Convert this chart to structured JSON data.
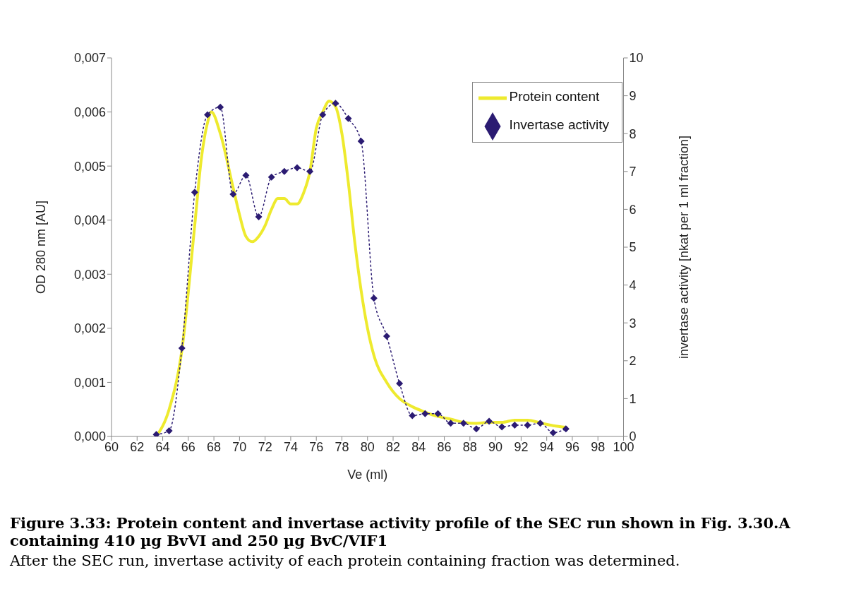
{
  "chart_data": {
    "type": "line",
    "title": "Figure 3.33: Protein content and invertase activity profile of the SEC run shown in Fig. 3.30.A containing 410 µg BvVI and 250 µg BvC/VIF1",
    "annotations": [
      "After the SEC run, invertase activity of each protein containing fraction was determined."
    ],
    "xlabel": "Ve (ml)",
    "ylabel": "OD 280 nm [AU]",
    "y2label": "invertase activity [nkat per 1 ml fraction]",
    "xlim": [
      60,
      100
    ],
    "xticks": [
      60,
      62,
      64,
      66,
      68,
      70,
      72,
      74,
      76,
      78,
      80,
      82,
      84,
      86,
      88,
      90,
      92,
      94,
      96,
      98,
      100
    ],
    "ylim": [
      0,
      0.007
    ],
    "yticks": [
      {
        "value": 0,
        "label": "0,000"
      },
      {
        "value": 0.001,
        "label": "0,001"
      },
      {
        "value": 0.002,
        "label": "0,002"
      },
      {
        "value": 0.003,
        "label": "0,003"
      },
      {
        "value": 0.004,
        "label": "0,004"
      },
      {
        "value": 0.005,
        "label": "0,005"
      },
      {
        "value": 0.006,
        "label": "0,006"
      },
      {
        "value": 0.007,
        "label": "0,007"
      }
    ],
    "y2lim": [
      0,
      10
    ],
    "y2ticks": [
      0,
      1,
      2,
      3,
      4,
      5,
      6,
      7,
      8,
      9,
      10
    ],
    "grid": false,
    "legend": "top right",
    "series": [
      {
        "name": "Protein content",
        "color": "#eeea2e",
        "marker": "none",
        "line_style": "solid",
        "x": [
          63.5,
          64.5,
          65.5,
          66.5,
          67.0,
          67.5,
          67.8,
          68.5,
          69.5,
          70.0,
          70.5,
          71.0,
          71.5,
          72.0,
          72.5,
          73.0,
          73.5,
          74.0,
          74.5,
          75.0,
          75.5,
          76.0,
          76.5,
          77.0,
          77.5,
          78.0,
          78.5,
          79.0,
          79.5,
          80.0,
          80.5,
          81.5,
          82.5,
          83.5,
          84.5,
          85.5,
          86.5,
          87.5,
          88.5,
          89.5,
          90.5,
          91.5,
          92.5,
          93.5,
          94.5,
          95.5
        ],
        "values": [
          0,
          0.0005,
          0.0016,
          0.0039,
          0.0051,
          0.0058,
          0.006,
          0.0056,
          0.0046,
          0.0041,
          0.0037,
          0.0036,
          0.0037,
          0.0039,
          0.0042,
          0.0044,
          0.0044,
          0.0043,
          0.0043,
          0.0045,
          0.0049,
          0.0057,
          0.006,
          0.0062,
          0.0061,
          0.0056,
          0.0047,
          0.0036,
          0.0027,
          0.002,
          0.0015,
          0.001,
          0.0007,
          0.00055,
          0.00045,
          0.00037,
          0.00032,
          0.00026,
          0.00024,
          0.00026,
          0.00026,
          0.0003,
          0.0003,
          0.00025,
          0.0002,
          0.00017
        ]
      },
      {
        "name": "Invertase activity",
        "color": "#2b1b72",
        "marker": "diamond",
        "line_style": "dotted",
        "axis": "y2",
        "x": [
          63.5,
          64.5,
          65.5,
          66.5,
          67.5,
          68.5,
          69.5,
          70.5,
          71.5,
          72.5,
          73.5,
          74.5,
          75.5,
          76.5,
          77.5,
          78.5,
          79.5,
          80.5,
          81.5,
          82.5,
          83.5,
          84.5,
          85.5,
          86.5,
          87.5,
          88.5,
          89.5,
          90.5,
          91.5,
          92.5,
          93.5,
          94.5,
          95.5
        ],
        "values": [
          0.05,
          0.15,
          2.33,
          6.45,
          8.5,
          8.7,
          6.4,
          6.9,
          5.8,
          6.85,
          7.0,
          7.1,
          7.0,
          8.5,
          8.8,
          8.4,
          7.8,
          3.65,
          2.65,
          1.4,
          0.55,
          0.6,
          0.6,
          0.35,
          0.35,
          0.2,
          0.4,
          0.25,
          0.3,
          0.3,
          0.35,
          0.1,
          0.2
        ]
      }
    ]
  }
}
